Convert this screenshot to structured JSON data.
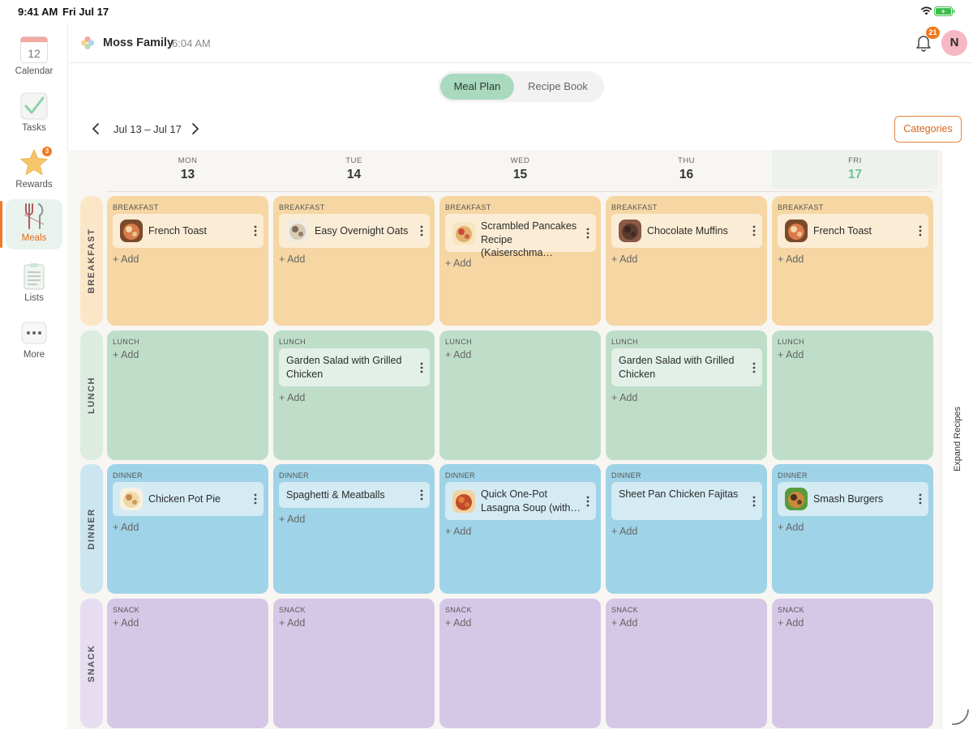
{
  "status_bar": {
    "time": "9:41 AM",
    "date": "Fri Jul 17"
  },
  "sidebar": {
    "items": [
      {
        "label": "Calendar",
        "icon": "calendar-icon",
        "icon_text": "12",
        "active": false
      },
      {
        "label": "Tasks",
        "icon": "check-icon",
        "active": false
      },
      {
        "label": "Rewards",
        "icon": "star-icon",
        "badge": "3",
        "active": false
      },
      {
        "label": "Meals",
        "icon": "utensils-icon",
        "active": true
      },
      {
        "label": "Lists",
        "icon": "list-icon",
        "active": false
      },
      {
        "label": "More",
        "icon": "more-icon",
        "active": false
      }
    ]
  },
  "header": {
    "family": "Moss Family",
    "time": "6:04 AM",
    "notification_count": "21",
    "avatar_initial": "N"
  },
  "tabs": [
    {
      "label": "Meal Plan",
      "active": true
    },
    {
      "label": "Recipe Book",
      "active": false
    }
  ],
  "week": {
    "range": "Jul 13 – Jul 17"
  },
  "categories_button": "Categories",
  "expand_label": "Expand Recipes",
  "add_label": "+ Add",
  "days": [
    {
      "dow": "MON",
      "num": "13",
      "today": false
    },
    {
      "dow": "TUE",
      "num": "14",
      "today": false
    },
    {
      "dow": "WED",
      "num": "15",
      "today": false
    },
    {
      "dow": "THU",
      "num": "16",
      "today": false
    },
    {
      "dow": "FRI",
      "num": "17",
      "today": true
    }
  ],
  "meal_rows": [
    {
      "name": "BREAKFAST",
      "color": "#f6d6a2",
      "label_color": "#fbe7c8",
      "cells": [
        [
          {
            "title": "French Toast",
            "thumb": "french-toast"
          }
        ],
        [
          {
            "title": "Easy Overnight Oats",
            "thumb": "oats"
          }
        ],
        [
          {
            "title": "Scrambled Pancakes Recipe (Kaiserschma…",
            "thumb": "pancakes"
          }
        ],
        [
          {
            "title": "Chocolate Muffins",
            "thumb": "muffins"
          }
        ],
        [
          {
            "title": "French Toast",
            "thumb": "french-toast"
          }
        ]
      ]
    },
    {
      "name": "LUNCH",
      "color": "#bfdec9",
      "label_color": "#dcece1",
      "cells": [
        [],
        [
          {
            "title": "Garden Salad with Grilled Chicken",
            "thumb": ""
          }
        ],
        [],
        [
          {
            "title": "Garden Salad with Grilled Chicken",
            "thumb": ""
          }
        ],
        []
      ]
    },
    {
      "name": "DINNER",
      "color": "#9fd3e7",
      "label_color": "#cbe6f0",
      "cells": [
        [
          {
            "title": "Chicken Pot Pie",
            "thumb": "pot-pie"
          }
        ],
        [
          {
            "title": "Spaghetti & Meatballs",
            "thumb": ""
          }
        ],
        [
          {
            "title": "Quick One-Pot Lasagna Soup (with…",
            "thumb": "lasagna-soup"
          }
        ],
        [
          {
            "title": "Sheet Pan Chicken Fajitas",
            "thumb": ""
          }
        ],
        [
          {
            "title": "Smash Burgers",
            "thumb": "burger"
          }
        ]
      ]
    },
    {
      "name": "SNACK",
      "color": "#d5c8e6",
      "label_color": "#e6ddf0",
      "cells": [
        [],
        [],
        [],
        [],
        []
      ]
    }
  ]
}
